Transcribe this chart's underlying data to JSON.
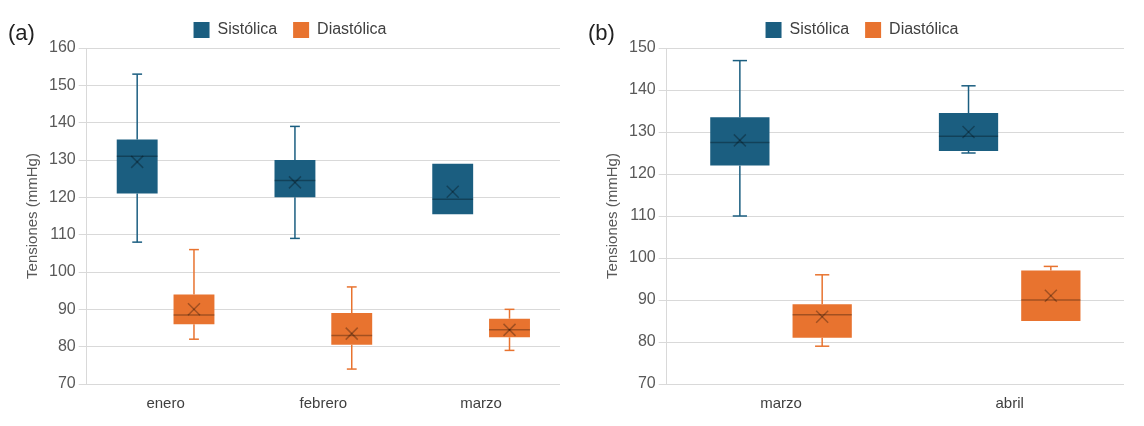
{
  "chart_data": [
    {
      "type": "box",
      "title": "(a)",
      "ylabel": "Tensiones (mmHg)",
      "categories": [
        "enero",
        "febrero",
        "marzo"
      ],
      "ylim": [
        70,
        160
      ],
      "yticks": [
        70,
        80,
        90,
        100,
        110,
        120,
        130,
        140,
        150,
        160
      ],
      "grid": "y",
      "legend": "top",
      "series": [
        {
          "name": "Sistólica",
          "color": "#1b5e80",
          "boxes": [
            {
              "low": 108,
              "q1": 121,
              "median": 131,
              "q3": 135.5,
              "high": 153,
              "mean": 129.5
            },
            {
              "low": 109,
              "q1": 120,
              "median": 124.5,
              "q3": 130,
              "high": 139,
              "mean": 124
            },
            {
              "low": 115.5,
              "q1": 115.5,
              "median": 119.5,
              "q3": 129,
              "high": 129,
              "mean": 121.5
            }
          ]
        },
        {
          "name": "Diastólica",
          "color": "#e8732f",
          "boxes": [
            {
              "low": 82,
              "q1": 86,
              "median": 88.5,
              "q3": 94,
              "high": 106,
              "mean": 90
            },
            {
              "low": 74,
              "q1": 80.5,
              "median": 83,
              "q3": 89,
              "high": 96,
              "mean": 83.5
            },
            {
              "low": 79,
              "q1": 82.5,
              "median": 84.5,
              "q3": 87.5,
              "high": 90,
              "mean": 84.5
            }
          ]
        }
      ]
    },
    {
      "type": "box",
      "title": "(b)",
      "ylabel": "Tensiones (mmHg)",
      "categories": [
        "marzo",
        "abril"
      ],
      "ylim": [
        70,
        150
      ],
      "yticks": [
        70,
        80,
        90,
        100,
        110,
        120,
        130,
        140,
        150
      ],
      "grid": "y",
      "legend": "top",
      "series": [
        {
          "name": "Sistólica",
          "color": "#1b5e80",
          "boxes": [
            {
              "low": 110,
              "q1": 122,
              "median": 127.5,
              "q3": 133.5,
              "high": 147,
              "mean": 128
            },
            {
              "low": 125,
              "q1": 125.5,
              "median": 129,
              "q3": 134.5,
              "high": 141,
              "mean": 130
            }
          ]
        },
        {
          "name": "Diastólica",
          "color": "#e8732f",
          "boxes": [
            {
              "low": 79,
              "q1": 81,
              "median": 86.5,
              "q3": 89,
              "high": 96,
              "mean": 86
            },
            {
              "low": 85,
              "q1": 85,
              "median": 90,
              "q3": 97,
              "high": 98,
              "mean": 91
            }
          ]
        }
      ]
    }
  ]
}
